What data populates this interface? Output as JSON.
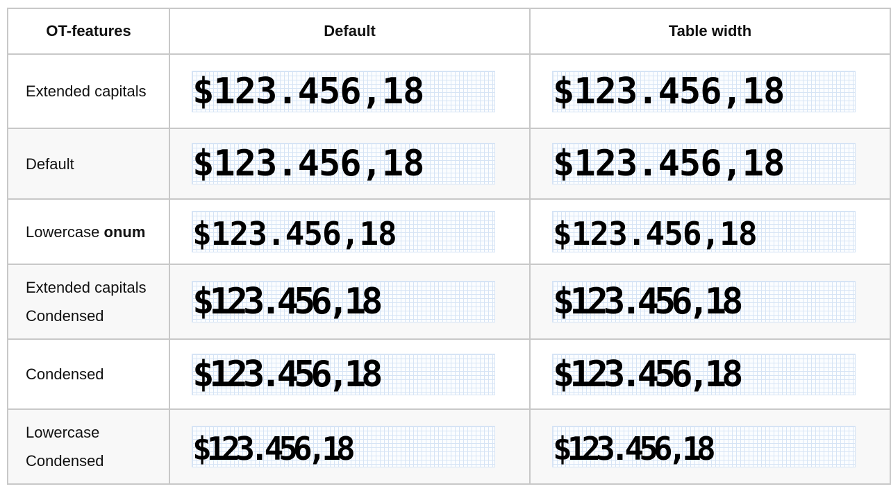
{
  "headers": [
    "OT-features",
    "Default",
    "Table width"
  ],
  "rows": [
    {
      "label": [
        "Extended capitals"
      ],
      "default": "$123.456,18",
      "table": "$123.456,18"
    },
    {
      "label": [
        "Default"
      ],
      "default": "$123.456,18",
      "table": "$123.456,18"
    },
    {
      "label": [
        "Lowercase ",
        "onum"
      ],
      "default": "$123.456,18",
      "table": "$123.456,18"
    },
    {
      "label": [
        "Extended capitals",
        "Condensed"
      ],
      "default": "$123.456,18",
      "table": "$123.456,18"
    },
    {
      "label": [
        "Condensed"
      ],
      "default": "$123.456,18",
      "table": "$123.456,18"
    },
    {
      "label": [
        "Lowercase",
        "Condensed"
      ],
      "default": "$123.456,18",
      "table": "$123.456,18"
    }
  ],
  "colors": {
    "border": "#c8c8c8",
    "alt_row": "#f8f8f8",
    "grid": "#d6e4f5"
  }
}
